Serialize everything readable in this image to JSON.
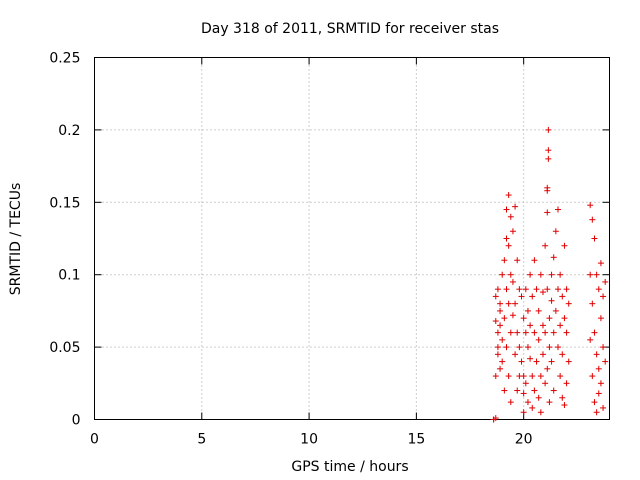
{
  "chart_data": {
    "type": "scatter",
    "title": "Day 318 of 2011, SRMTID for receiver stas",
    "xlabel": "GPS time / hours",
    "ylabel": "SRMTID / TECUs",
    "xlim": [
      0,
      24
    ],
    "ylim": [
      0,
      0.25
    ],
    "grid": true,
    "x_ticks": [
      0,
      5,
      10,
      15,
      20
    ],
    "x_tick_labels": [
      "0",
      "5",
      "10",
      "15",
      "20"
    ],
    "y_ticks": [
      0,
      0.05,
      0.1,
      0.15,
      0.2,
      0.25
    ],
    "y_tick_labels": [
      "0",
      "0.05",
      "0.1",
      "0.15",
      "0.2",
      "0.25"
    ],
    "marker": "plus",
    "marker_color": "#e00000",
    "series": [
      {
        "name": "SRMTID",
        "points": [
          [
            18.6,
            0.0
          ],
          [
            18.6,
            0.0
          ],
          [
            18.7,
            0.001
          ],
          [
            18.7,
            0.03
          ],
          [
            18.8,
            0.045
          ],
          [
            18.8,
            0.06
          ],
          [
            18.9,
            0.065
          ],
          [
            18.9,
            0.08
          ],
          [
            18.7,
            0.085
          ],
          [
            18.8,
            0.05
          ],
          [
            18.9,
            0.035
          ],
          [
            18.7,
            0.068
          ],
          [
            18.8,
            0.09
          ],
          [
            18.9,
            0.075
          ],
          [
            19.0,
            0.1
          ],
          [
            19.0,
            0.055
          ],
          [
            19.0,
            0.04
          ],
          [
            19.1,
            0.11
          ],
          [
            19.1,
            0.07
          ],
          [
            19.1,
            0.02
          ],
          [
            19.2,
            0.145
          ],
          [
            19.2,
            0.09
          ],
          [
            19.2,
            0.05
          ],
          [
            19.2,
            0.125
          ],
          [
            19.3,
            0.155
          ],
          [
            19.3,
            0.12
          ],
          [
            19.3,
            0.08
          ],
          [
            19.3,
            0.03
          ],
          [
            19.4,
            0.14
          ],
          [
            19.4,
            0.1
          ],
          [
            19.4,
            0.06
          ],
          [
            19.4,
            0.012
          ],
          [
            19.5,
            0.13
          ],
          [
            19.5,
            0.095
          ],
          [
            19.5,
            0.072
          ],
          [
            19.6,
            0.147
          ],
          [
            19.6,
            0.08
          ],
          [
            19.6,
            0.045
          ],
          [
            19.7,
            0.11
          ],
          [
            19.7,
            0.06
          ],
          [
            19.7,
            0.02
          ],
          [
            19.8,
            0.09
          ],
          [
            19.8,
            0.05
          ],
          [
            19.8,
            0.03
          ],
          [
            19.9,
            0.085
          ],
          [
            19.9,
            0.04
          ],
          [
            20.0,
            0.07
          ],
          [
            20.0,
            0.03
          ],
          [
            20.0,
            0.005
          ],
          [
            20.0,
            0.018
          ],
          [
            20.1,
            0.06
          ],
          [
            20.1,
            0.025
          ],
          [
            20.1,
            0.09
          ],
          [
            20.2,
            0.05
          ],
          [
            20.2,
            0.012
          ],
          [
            20.2,
            0.075
          ],
          [
            20.3,
            0.1
          ],
          [
            20.3,
            0.042
          ],
          [
            20.3,
            0.065
          ],
          [
            20.4,
            0.085
          ],
          [
            20.4,
            0.03
          ],
          [
            20.4,
            0.008
          ],
          [
            20.5,
            0.11
          ],
          [
            20.5,
            0.06
          ],
          [
            20.5,
            0.02
          ],
          [
            20.6,
            0.09
          ],
          [
            20.6,
            0.04
          ],
          [
            20.7,
            0.075
          ],
          [
            20.7,
            0.015
          ],
          [
            20.7,
            0.055
          ],
          [
            20.8,
            0.1
          ],
          [
            20.8,
            0.03
          ],
          [
            20.8,
            0.005
          ],
          [
            20.9,
            0.065
          ],
          [
            20.9,
            0.045
          ],
          [
            20.9,
            0.088
          ],
          [
            21.0,
            0.12
          ],
          [
            21.0,
            0.06
          ],
          [
            21.0,
            0.025
          ],
          [
            21.1,
            0.158
          ],
          [
            21.1,
            0.09
          ],
          [
            21.1,
            0.035
          ],
          [
            21.1,
            0.143
          ],
          [
            21.15,
            0.2
          ],
          [
            21.15,
            0.186
          ],
          [
            21.15,
            0.18
          ],
          [
            21.1,
            0.16
          ],
          [
            21.2,
            0.07
          ],
          [
            21.2,
            0.012
          ],
          [
            21.2,
            0.05
          ],
          [
            21.3,
            0.1
          ],
          [
            21.3,
            0.04
          ],
          [
            21.3,
            0.082
          ],
          [
            21.4,
            0.112
          ],
          [
            21.4,
            0.06
          ],
          [
            21.4,
            0.02
          ],
          [
            21.5,
            0.13
          ],
          [
            21.5,
            0.075
          ],
          [
            21.6,
            0.145
          ],
          [
            21.6,
            0.05
          ],
          [
            21.6,
            0.09
          ],
          [
            21.7,
            0.1
          ],
          [
            21.7,
            0.03
          ],
          [
            21.7,
            0.065
          ],
          [
            21.8,
            0.085
          ],
          [
            21.8,
            0.015
          ],
          [
            21.8,
            0.045
          ],
          [
            21.9,
            0.12
          ],
          [
            21.9,
            0.07
          ],
          [
            21.9,
            0.01
          ],
          [
            22.0,
            0.06
          ],
          [
            22.0,
            0.025
          ],
          [
            22.0,
            0.09
          ],
          [
            22.1,
            0.04
          ],
          [
            22.1,
            0.08
          ],
          [
            23.1,
            0.148
          ],
          [
            23.1,
            0.1
          ],
          [
            23.1,
            0.055
          ],
          [
            23.2,
            0.138
          ],
          [
            23.2,
            0.08
          ],
          [
            23.2,
            0.03
          ],
          [
            23.3,
            0.125
          ],
          [
            23.3,
            0.06
          ],
          [
            23.3,
            0.012
          ],
          [
            23.4,
            0.1
          ],
          [
            23.4,
            0.045
          ],
          [
            23.4,
            0.005
          ],
          [
            23.5,
            0.09
          ],
          [
            23.5,
            0.035
          ],
          [
            23.5,
            0.018
          ],
          [
            23.6,
            0.108
          ],
          [
            23.6,
            0.07
          ],
          [
            23.6,
            0.025
          ],
          [
            23.7,
            0.085
          ],
          [
            23.7,
            0.05
          ],
          [
            23.7,
            0.008
          ],
          [
            23.8,
            0.095
          ],
          [
            23.8,
            0.04
          ]
        ]
      }
    ]
  }
}
